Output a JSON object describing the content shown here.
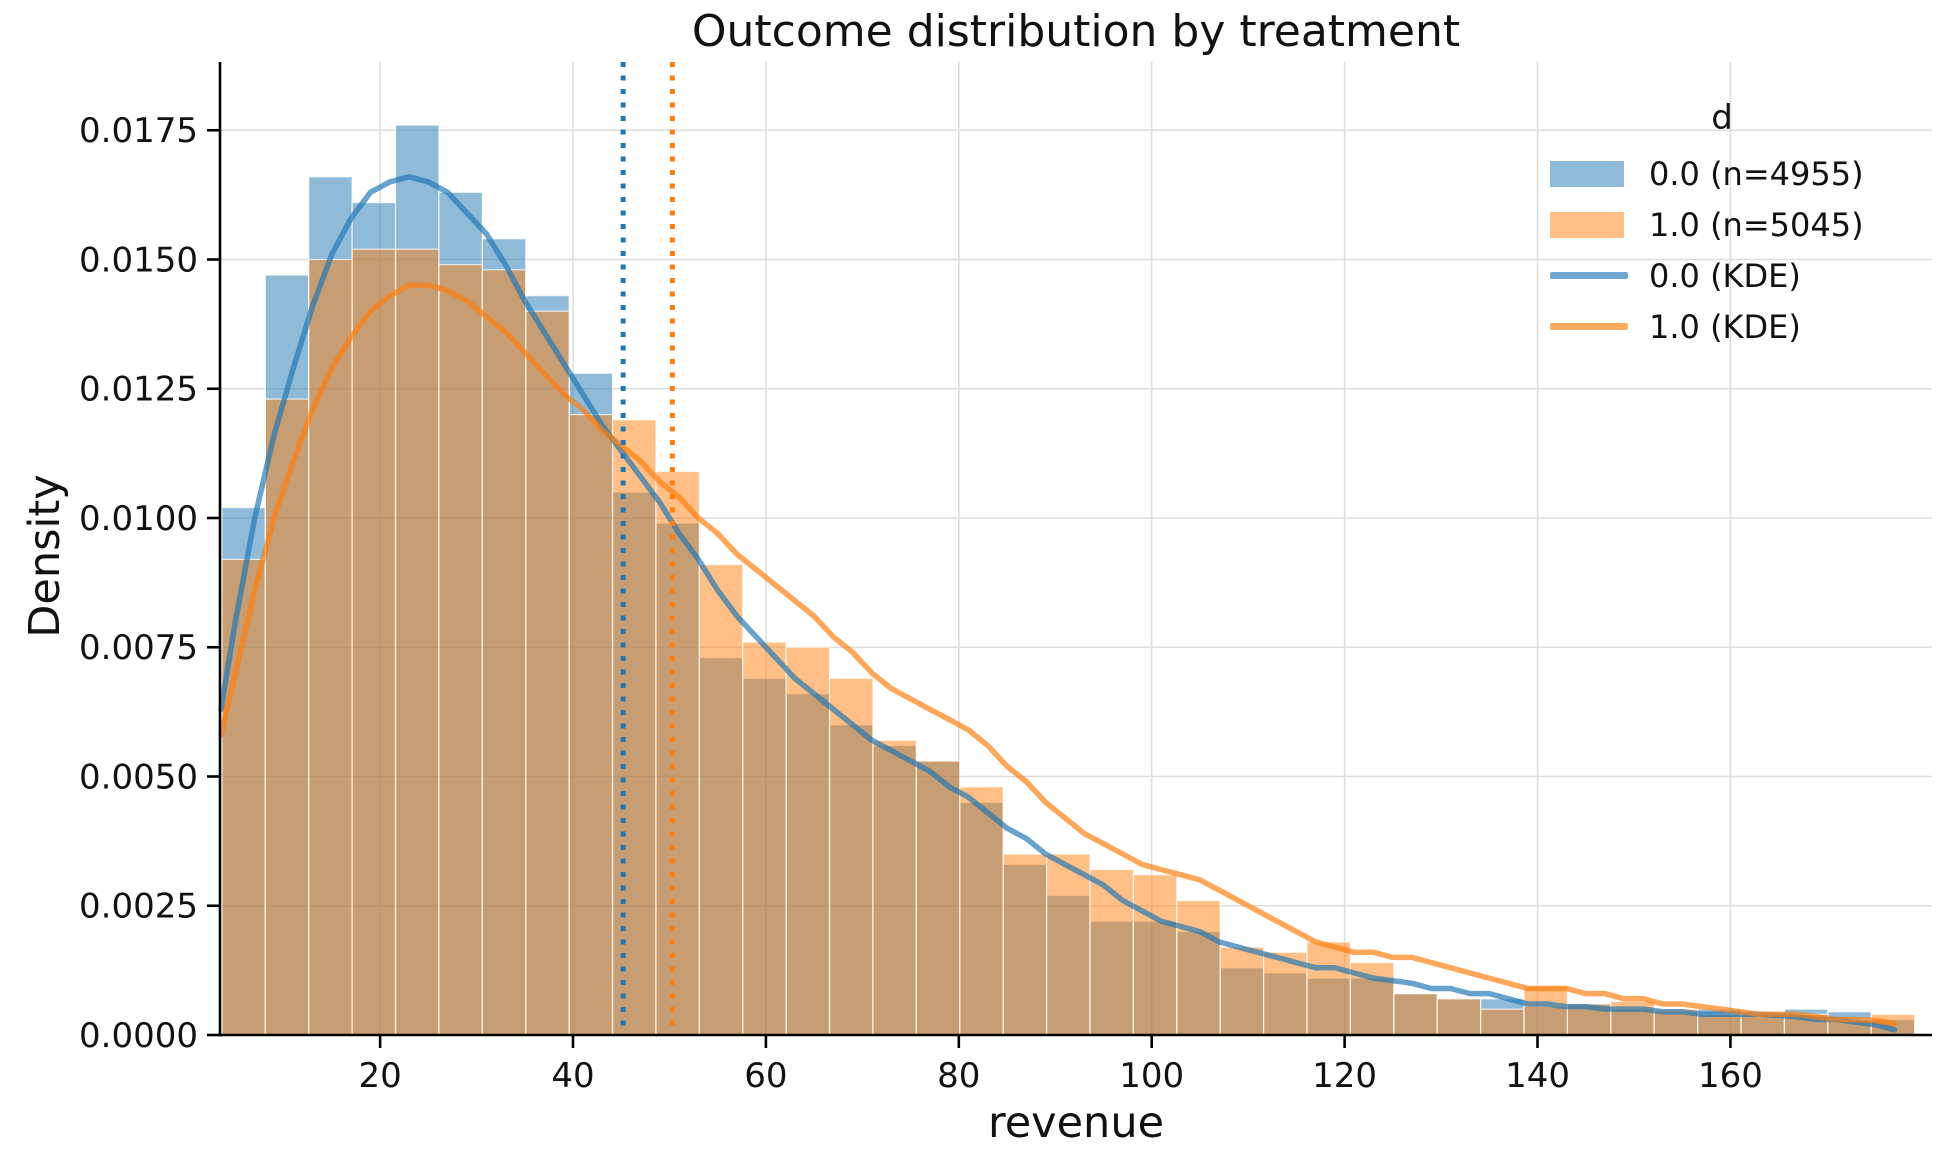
{
  "chart_data": {
    "type": "histogram",
    "title": "Outcome distribution by treatment",
    "xlabel": "revenue",
    "ylabel": "Density",
    "xlim": [
      3.4,
      180.9
    ],
    "ylim": [
      0,
      0.01882
    ],
    "grid": true,
    "legend_position": "upper right",
    "xticks": [
      {
        "v": 20,
        "label": "20"
      },
      {
        "v": 40,
        "label": "40"
      },
      {
        "v": 60,
        "label": "60"
      },
      {
        "v": 80,
        "label": "80"
      },
      {
        "v": 100,
        "label": "100"
      },
      {
        "v": 120,
        "label": "120"
      },
      {
        "v": 140,
        "label": "140"
      },
      {
        "v": 160,
        "label": "160"
      }
    ],
    "yticks": [
      {
        "v": 0.0,
        "label": "0.0000"
      },
      {
        "v": 0.0025,
        "label": "0.0025"
      },
      {
        "v": 0.005,
        "label": "0.0050"
      },
      {
        "v": 0.0075,
        "label": "0.0075"
      },
      {
        "v": 0.01,
        "label": "0.0100"
      },
      {
        "v": 0.0125,
        "label": "0.0125"
      },
      {
        "v": 0.015,
        "label": "0.0150"
      },
      {
        "v": 0.0175,
        "label": "0.0175"
      }
    ],
    "legend": {
      "title": "d",
      "entries": [
        {
          "label": "0.0 (n=4955)",
          "type": "patch",
          "color": "rgba(31,119,180,0.5)"
        },
        {
          "label": "1.0 (n=5045)",
          "type": "patch",
          "color": "rgba(255,127,14,0.5)"
        },
        {
          "label": "0.0 (KDE)",
          "type": "line",
          "color": "rgba(31,119,180,0.65)"
        },
        {
          "label": "1.0 (KDE)",
          "type": "line",
          "color": "rgba(255,127,14,0.65)"
        }
      ]
    },
    "histogram": {
      "bin_start": 3.6,
      "bin_width": 4.5,
      "series": [
        {
          "name": "0.0 (n=4955)",
          "fill": "rgba(31,119,180,0.5)",
          "heights": [
            0.0102,
            0.0147,
            0.0166,
            0.0161,
            0.0176,
            0.0163,
            0.0154,
            0.0143,
            0.0128,
            0.0105,
            0.0099,
            0.0073,
            0.0069,
            0.0066,
            0.006,
            0.0056,
            0.0053,
            0.0045,
            0.0033,
            0.0027,
            0.0022,
            0.0022,
            0.002,
            0.0013,
            0.0012,
            0.0011,
            0.0011,
            0.0008,
            0.0007,
            0.0007,
            0.00055,
            0.0006,
            0.0005,
            0.00045,
            0.0005,
            0.0004,
            0.0005,
            0.00045,
            0.0003
          ]
        },
        {
          "name": "1.0 (n=5045)",
          "fill": "rgba(255,127,14,0.5)",
          "heights": [
            0.0092,
            0.0123,
            0.015,
            0.0152,
            0.0152,
            0.0149,
            0.0148,
            0.014,
            0.012,
            0.0119,
            0.0109,
            0.0091,
            0.0076,
            0.0075,
            0.0069,
            0.0057,
            0.0053,
            0.0048,
            0.0035,
            0.0035,
            0.0032,
            0.0031,
            0.0026,
            0.0017,
            0.0016,
            0.0018,
            0.0014,
            0.0008,
            0.0007,
            0.0005,
            0.00095,
            0.0006,
            0.00065,
            0.0005,
            0.0004,
            0.0004,
            0.0004,
            0.0003,
            0.0004
          ]
        }
      ]
    },
    "kde_curves": [
      {
        "name": "0.0 (KDE)",
        "color": "rgba(31,119,180,0.68)",
        "points": [
          [
            3.5,
            0.0063
          ],
          [
            5,
            0.008
          ],
          [
            7,
            0.01
          ],
          [
            9,
            0.0116
          ],
          [
            11,
            0.0129
          ],
          [
            13,
            0.0141
          ],
          [
            15,
            0.0151
          ],
          [
            17,
            0.0158
          ],
          [
            19,
            0.0163
          ],
          [
            21,
            0.0165
          ],
          [
            23,
            0.0166
          ],
          [
            25,
            0.0165
          ],
          [
            27,
            0.0163
          ],
          [
            29,
            0.0159
          ],
          [
            31,
            0.0155
          ],
          [
            33,
            0.0149
          ],
          [
            35,
            0.0142
          ],
          [
            37,
            0.0136
          ],
          [
            39,
            0.013
          ],
          [
            41,
            0.0124
          ],
          [
            43,
            0.0118
          ],
          [
            45,
            0.0113
          ],
          [
            47,
            0.0108
          ],
          [
            49,
            0.0103
          ],
          [
            51,
            0.0097
          ],
          [
            53,
            0.0092
          ],
          [
            55,
            0.0086
          ],
          [
            57,
            0.0081
          ],
          [
            59,
            0.0077
          ],
          [
            61,
            0.0073
          ],
          [
            63,
            0.0069
          ],
          [
            65,
            0.0066
          ],
          [
            67,
            0.0063
          ],
          [
            69,
            0.006
          ],
          [
            71,
            0.0057
          ],
          [
            73,
            0.0055
          ],
          [
            75,
            0.0053
          ],
          [
            77,
            0.0051
          ],
          [
            79,
            0.0048
          ],
          [
            81,
            0.0046
          ],
          [
            83,
            0.0043
          ],
          [
            85,
            0.004
          ],
          [
            87,
            0.0038
          ],
          [
            89,
            0.0035
          ],
          [
            91,
            0.0033
          ],
          [
            93,
            0.0031
          ],
          [
            95,
            0.0029
          ],
          [
            97,
            0.0026
          ],
          [
            99,
            0.0024
          ],
          [
            101,
            0.0022
          ],
          [
            103,
            0.0021
          ],
          [
            105,
            0.002
          ],
          [
            107,
            0.0018
          ],
          [
            109,
            0.0017
          ],
          [
            111,
            0.0016
          ],
          [
            113,
            0.0015
          ],
          [
            115,
            0.0014
          ],
          [
            117,
            0.0013
          ],
          [
            119,
            0.0013
          ],
          [
            121,
            0.0012
          ],
          [
            123,
            0.0011
          ],
          [
            125,
            0.00105
          ],
          [
            127,
            0.001
          ],
          [
            129,
            0.0009
          ],
          [
            131,
            0.0009
          ],
          [
            133,
            0.0008
          ],
          [
            135,
            0.0008
          ],
          [
            137,
            0.0007
          ],
          [
            139,
            0.0006
          ],
          [
            141,
            0.0006
          ],
          [
            143,
            0.00055
          ],
          [
            145,
            0.00055
          ],
          [
            147,
            0.0005
          ],
          [
            149,
            0.0005
          ],
          [
            151,
            0.0005
          ],
          [
            153,
            0.00045
          ],
          [
            155,
            0.00045
          ],
          [
            157,
            0.0004
          ],
          [
            159,
            0.0004
          ],
          [
            161,
            0.0004
          ],
          [
            163,
            0.0004
          ],
          [
            165,
            0.00038
          ],
          [
            167,
            0.00035
          ],
          [
            169,
            0.0003
          ],
          [
            171,
            0.0003
          ],
          [
            173,
            0.00025
          ],
          [
            175,
            0.0002
          ],
          [
            177,
            0.0001
          ]
        ]
      },
      {
        "name": "1.0 (KDE)",
        "color": "rgba(255,127,14,0.68)",
        "points": [
          [
            3.5,
            0.0058
          ],
          [
            5,
            0.007
          ],
          [
            7,
            0.0086
          ],
          [
            9,
            0.01
          ],
          [
            11,
            0.0111
          ],
          [
            13,
            0.0121
          ],
          [
            15,
            0.0129
          ],
          [
            17,
            0.0135
          ],
          [
            19,
            0.014
          ],
          [
            21,
            0.0143
          ],
          [
            23,
            0.0145
          ],
          [
            25,
            0.0145
          ],
          [
            27,
            0.0144
          ],
          [
            29,
            0.0142
          ],
          [
            31,
            0.0139
          ],
          [
            33,
            0.0136
          ],
          [
            35,
            0.0132
          ],
          [
            37,
            0.0128
          ],
          [
            39,
            0.0124
          ],
          [
            41,
            0.0121
          ],
          [
            43,
            0.0117
          ],
          [
            45,
            0.0114
          ],
          [
            47,
            0.0111
          ],
          [
            49,
            0.0107
          ],
          [
            51,
            0.0104
          ],
          [
            53,
            0.01
          ],
          [
            55,
            0.0097
          ],
          [
            57,
            0.0093
          ],
          [
            59,
            0.009
          ],
          [
            61,
            0.0087
          ],
          [
            63,
            0.0084
          ],
          [
            65,
            0.0081
          ],
          [
            67,
            0.0077
          ],
          [
            69,
            0.0074
          ],
          [
            71,
            0.007
          ],
          [
            73,
            0.0067
          ],
          [
            75,
            0.0065
          ],
          [
            77,
            0.0063
          ],
          [
            79,
            0.0061
          ],
          [
            81,
            0.0059
          ],
          [
            83,
            0.0056
          ],
          [
            85,
            0.0052
          ],
          [
            87,
            0.0049
          ],
          [
            89,
            0.0045
          ],
          [
            91,
            0.0042
          ],
          [
            93,
            0.0039
          ],
          [
            95,
            0.0037
          ],
          [
            97,
            0.0035
          ],
          [
            99,
            0.0033
          ],
          [
            101,
            0.0032
          ],
          [
            103,
            0.0031
          ],
          [
            105,
            0.003
          ],
          [
            107,
            0.0028
          ],
          [
            109,
            0.0026
          ],
          [
            111,
            0.0024
          ],
          [
            113,
            0.0022
          ],
          [
            115,
            0.002
          ],
          [
            117,
            0.0018
          ],
          [
            119,
            0.0017
          ],
          [
            121,
            0.0016
          ],
          [
            123,
            0.0016
          ],
          [
            125,
            0.0015
          ],
          [
            127,
            0.0015
          ],
          [
            129,
            0.0014
          ],
          [
            131,
            0.0013
          ],
          [
            133,
            0.0012
          ],
          [
            135,
            0.0011
          ],
          [
            137,
            0.001
          ],
          [
            139,
            0.0009
          ],
          [
            141,
            0.0009
          ],
          [
            143,
            0.0009
          ],
          [
            145,
            0.0008
          ],
          [
            147,
            0.0008
          ],
          [
            149,
            0.0007
          ],
          [
            151,
            0.0007
          ],
          [
            153,
            0.0006
          ],
          [
            155,
            0.0006
          ],
          [
            157,
            0.00055
          ],
          [
            159,
            0.0005
          ],
          [
            161,
            0.00045
          ],
          [
            163,
            0.0004
          ],
          [
            165,
            0.0004
          ],
          [
            167,
            0.0004
          ],
          [
            169,
            0.00035
          ],
          [
            171,
            0.0003
          ],
          [
            173,
            0.0003
          ],
          [
            175,
            0.00028
          ],
          [
            177,
            0.00022
          ]
        ]
      }
    ],
    "mean_lines": [
      {
        "x": 45.2,
        "color": "#1f77b4"
      },
      {
        "x": 50.3,
        "color": "#ff7f0e"
      }
    ]
  }
}
